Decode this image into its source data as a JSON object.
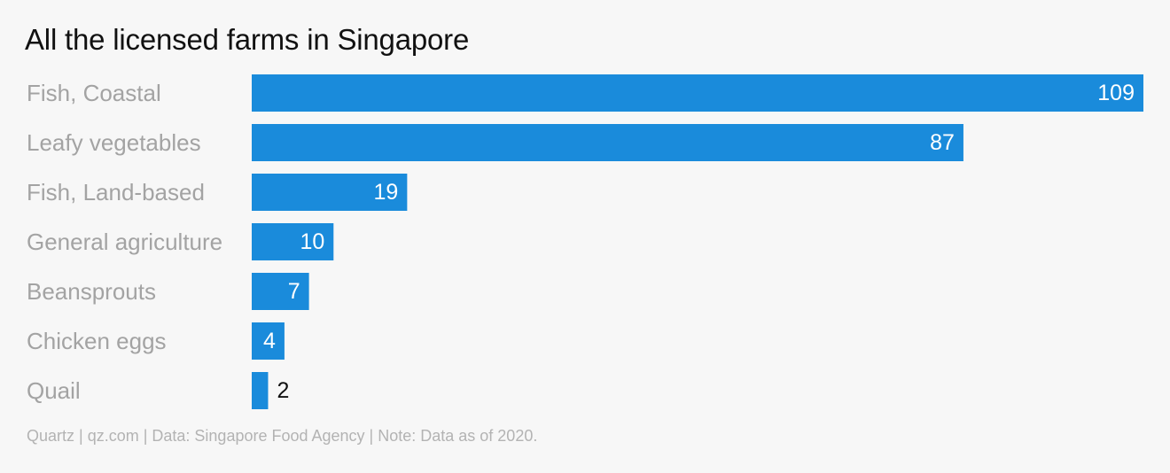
{
  "title": "All the licensed farms in Singapore",
  "footer": "Quartz | qz.com | Data: Singapore Food Agency | Note: Data as of 2020.",
  "colors": {
    "bar": "#1a8bdb",
    "background": "#f7f7f7"
  },
  "chart_data": {
    "type": "bar",
    "orientation": "horizontal",
    "title": "All the licensed farms in Singapore",
    "categories": [
      "Fish, Coastal",
      "Leafy vegetables",
      "Fish, Land-based",
      "General agriculture",
      "Beansprouts",
      "Chicken eggs",
      "Quail"
    ],
    "values": [
      109,
      87,
      19,
      10,
      7,
      4,
      2
    ],
    "xlabel": "",
    "ylabel": "",
    "xlim": [
      0,
      109
    ],
    "grid": false,
    "legend": "none",
    "data_labels": true
  }
}
